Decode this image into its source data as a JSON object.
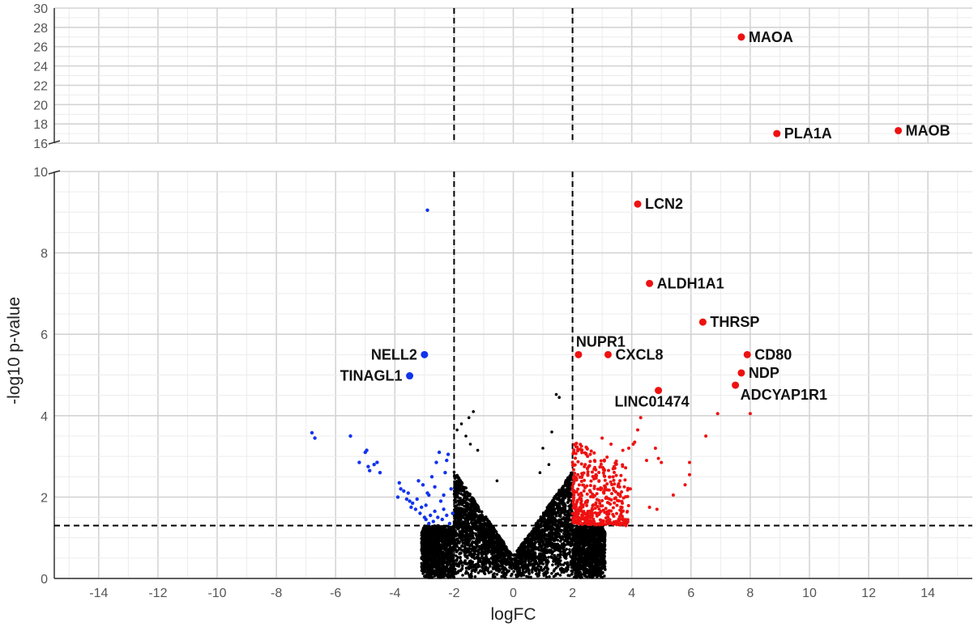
{
  "chart_data": {
    "type": "scatter",
    "title": "",
    "xlabel": "logFC",
    "ylabel": "-log10 p-value",
    "xlim": [
      -15.5,
      15.5
    ],
    "ylim_lower": [
      0,
      10
    ],
    "ylim_upper": [
      16,
      30
    ],
    "x_ticks": [
      -14,
      -12,
      -10,
      -8,
      -6,
      -4,
      -2,
      0,
      2,
      4,
      6,
      8,
      10,
      12,
      14
    ],
    "y_ticks_lower": [
      0,
      2,
      4,
      6,
      8,
      10
    ],
    "y_ticks_upper": [
      16,
      18,
      20,
      22,
      24,
      26,
      28,
      30
    ],
    "thresholds": {
      "logFC": [
        -2,
        2
      ],
      "neg_log10_p": 1.3
    },
    "grid": true,
    "colors": {
      "up": "#ee1111",
      "down": "#1133ee",
      "ns": "#000000",
      "threshold": "#000000"
    },
    "series": [
      {
        "labeled": [
          {
            "gene": "MAOA",
            "x": 7.7,
            "y": 27.0
          },
          {
            "gene": "PLA1A",
            "x": 8.9,
            "y": 17.0
          },
          {
            "gene": "MAOB",
            "x": 13.0,
            "y": 17.3
          },
          {
            "gene": "LCN2",
            "x": 4.2,
            "y": 9.2
          },
          {
            "gene": "ALDH1A1",
            "x": 4.6,
            "y": 7.25
          },
          {
            "gene": "THRSP",
            "x": 6.4,
            "y": 6.3
          },
          {
            "gene": "NUPR1",
            "x": 2.2,
            "y": 5.5
          },
          {
            "gene": "CXCL8",
            "x": 3.2,
            "y": 5.5
          },
          {
            "gene": "CD80",
            "x": 7.9,
            "y": 5.5
          },
          {
            "gene": "NDP",
            "x": 7.7,
            "y": 5.05
          },
          {
            "gene": "ADCYAP1R1",
            "x": 7.5,
            "y": 4.75
          },
          {
            "gene": "LINC01474",
            "x": 4.9,
            "y": 4.62
          },
          {
            "gene": "NELL2",
            "x": -3.0,
            "y": 5.5
          },
          {
            "gene": "TINAGL1",
            "x": -3.5,
            "y": 4.98
          }
        ]
      },
      {
        "down": [
          [
            -2.9,
            9.05
          ],
          [
            -6.8,
            3.58
          ],
          [
            -6.7,
            3.45
          ],
          [
            -5.5,
            3.5
          ],
          [
            -5.2,
            2.85
          ],
          [
            -5.0,
            3.1
          ],
          [
            -4.95,
            3.15
          ],
          [
            -4.9,
            2.75
          ],
          [
            -4.85,
            2.65
          ],
          [
            -4.7,
            2.8
          ],
          [
            -4.6,
            2.85
          ],
          [
            -4.5,
            2.6
          ],
          [
            -3.85,
            2.35
          ],
          [
            -3.8,
            2.2
          ],
          [
            -3.7,
            2.15
          ],
          [
            -3.6,
            1.95
          ],
          [
            -3.5,
            1.9
          ],
          [
            -3.4,
            1.85
          ],
          [
            -3.3,
            1.7
          ],
          [
            -3.2,
            2.4
          ],
          [
            -3.15,
            1.6
          ],
          [
            -3.1,
            1.75
          ],
          [
            -3.0,
            1.5
          ],
          [
            -2.95,
            1.45
          ],
          [
            -2.9,
            2.1
          ],
          [
            -2.85,
            1.35
          ],
          [
            -2.8,
            1.55
          ],
          [
            -2.75,
            2.5
          ],
          [
            -2.7,
            1.4
          ],
          [
            -2.65,
            1.65
          ],
          [
            -2.6,
            2.85
          ],
          [
            -2.55,
            1.5
          ],
          [
            -2.5,
            3.1
          ],
          [
            -2.45,
            1.9
          ],
          [
            -2.4,
            1.45
          ],
          [
            -2.35,
            2.05
          ],
          [
            -2.3,
            2.6
          ],
          [
            -2.25,
            1.55
          ],
          [
            -2.2,
            3.05
          ],
          [
            -2.15,
            1.35
          ],
          [
            -2.1,
            2.2
          ],
          [
            -2.05,
            1.6
          ],
          [
            -3.9,
            2.0
          ],
          [
            -3.25,
            1.95
          ],
          [
            -2.65,
            2.25
          ],
          [
            -3.45,
            1.75
          ],
          [
            -2.95,
            1.8
          ],
          [
            -2.35,
            1.7
          ],
          [
            -3.05,
            2.3
          ],
          [
            -2.25,
            2.9
          ],
          [
            -3.55,
            2.1
          ],
          [
            -2.85,
            2.05
          ]
        ]
      },
      {
        "up": [
          [
            4.3,
            3.95
          ],
          [
            6.9,
            4.05
          ],
          [
            8.0,
            4.05
          ],
          [
            6.5,
            3.5
          ],
          [
            4.2,
            3.65
          ],
          [
            3.9,
            3.2
          ],
          [
            3.0,
            3.45
          ],
          [
            4.8,
            3.2
          ],
          [
            4.9,
            2.95
          ],
          [
            5.0,
            2.85
          ],
          [
            5.95,
            2.85
          ],
          [
            5.95,
            2.55
          ],
          [
            5.8,
            2.3
          ],
          [
            5.4,
            2.05
          ],
          [
            4.5,
            2.9
          ],
          [
            4.6,
            1.75
          ],
          [
            4.85,
            1.7
          ],
          [
            3.5,
            1.4
          ],
          [
            3.8,
            1.3
          ],
          [
            2.3,
            3.25
          ],
          [
            2.6,
            3.05
          ],
          [
            3.3,
            3.3
          ],
          [
            3.7,
            3.15
          ],
          [
            4.05,
            3.3
          ],
          [
            4.1,
            3.35
          ],
          [
            3.6,
            2.4
          ],
          [
            3.95,
            2.2
          ],
          [
            3.4,
            2.75
          ]
        ]
      }
    ]
  }
}
